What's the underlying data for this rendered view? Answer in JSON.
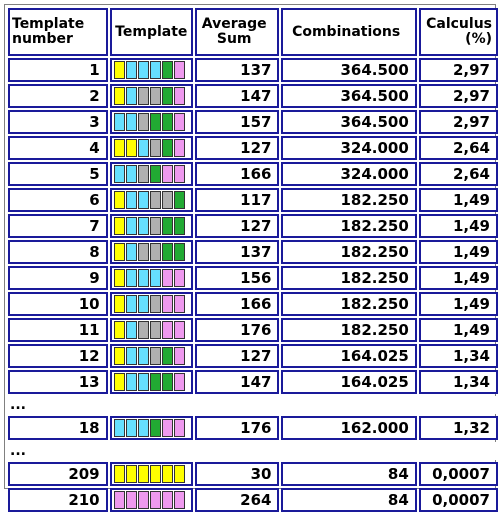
{
  "headers": {
    "template_number": "Template number",
    "template": "Template",
    "average_sum": "Average Sum",
    "combinations": "Combinations",
    "calculus": "Calculus (%)"
  },
  "ellipsis": "...",
  "colors": {
    "Y": "#ffff00",
    "C": "#66e0ff",
    "G": "#b0b0b0",
    "N": "#22aa33",
    "P": "#ee99ee"
  },
  "rows": [
    {
      "num": "1",
      "tpl": "YCCCNP",
      "avg": "137",
      "comb": "364.500",
      "calc": "2,97"
    },
    {
      "num": "2",
      "tpl": "YCGGNP",
      "avg": "147",
      "comb": "364.500",
      "calc": "2,97"
    },
    {
      "num": "3",
      "tpl": "CCGNNP",
      "avg": "157",
      "comb": "364.500",
      "calc": "2,97"
    },
    {
      "num": "4",
      "tpl": "YYCGNP",
      "avg": "127",
      "comb": "324.000",
      "calc": "2,64"
    },
    {
      "num": "5",
      "tpl": "CCGNPP",
      "avg": "166",
      "comb": "324.000",
      "calc": "2,64"
    },
    {
      "num": "6",
      "tpl": "YCCGGN",
      "avg": "117",
      "comb": "182.250",
      "calc": "1,49"
    },
    {
      "num": "7",
      "tpl": "YCCGNN",
      "avg": "127",
      "comb": "182.250",
      "calc": "1,49"
    },
    {
      "num": "8",
      "tpl": "YCGGNN",
      "avg": "137",
      "comb": "182.250",
      "calc": "1,49"
    },
    {
      "num": "9",
      "tpl": "YCCCPP",
      "avg": "156",
      "comb": "182.250",
      "calc": "1,49"
    },
    {
      "num": "10",
      "tpl": "YCCGPP",
      "avg": "166",
      "comb": "182.250",
      "calc": "1,49"
    },
    {
      "num": "11",
      "tpl": "YCGGPP",
      "avg": "176",
      "comb": "182.250",
      "calc": "1,49"
    },
    {
      "num": "12",
      "tpl": "YCCGNP",
      "avg": "127",
      "comb": "164.025",
      "calc": "1,34"
    },
    {
      "num": "13",
      "tpl": "YCCNNP",
      "avg": "147",
      "comb": "164.025",
      "calc": "1,34"
    },
    {
      "gap": true
    },
    {
      "num": "18",
      "tpl": "CCCNPP",
      "avg": "176",
      "comb": "162.000",
      "calc": "1,32"
    },
    {
      "gap": true
    },
    {
      "num": "209",
      "tpl": "YYYYYY",
      "avg": "30",
      "comb": "84",
      "calc": "0,0007"
    },
    {
      "num": "210",
      "tpl": "PPPPPP",
      "avg": "264",
      "comb": "84",
      "calc": "0,0007"
    }
  ]
}
